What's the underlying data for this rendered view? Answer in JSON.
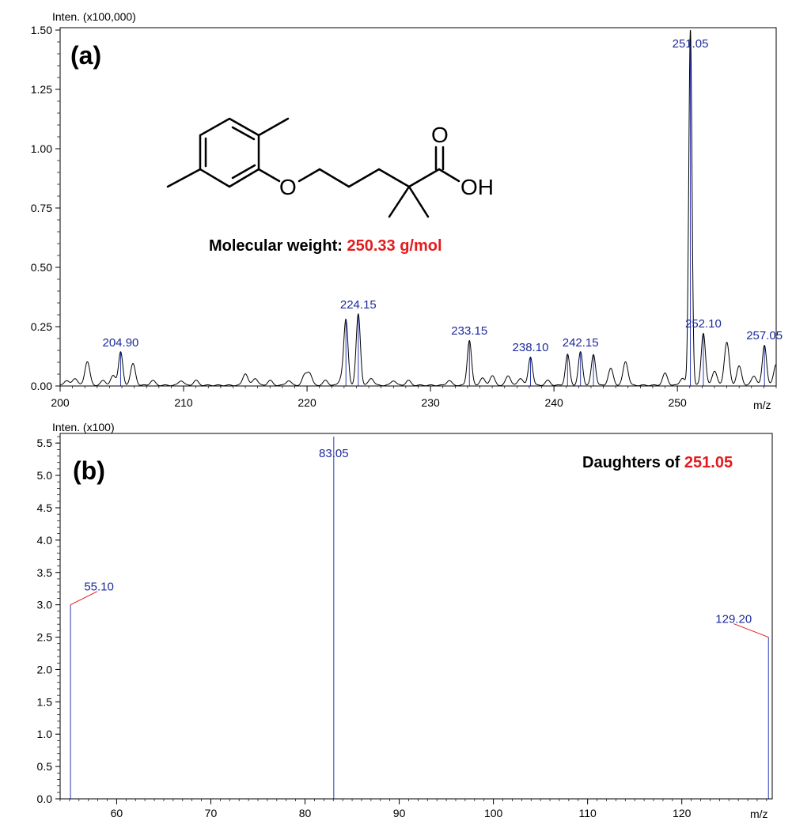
{
  "colors": {
    "peak_line": "#2a3cb8",
    "peak_label": "#1c2a9c",
    "trace": "#000000",
    "highlight": "#e41a1c",
    "leader": "#e41a1c"
  },
  "chart_data": [
    {
      "panel": "(a)",
      "type": "line",
      "ylabel": "Inten. (x100,000)",
      "xlabel": "m/z",
      "xlim": [
        200,
        258
      ],
      "ylim": [
        0,
        1.5
      ],
      "x_ticks": [
        "200",
        "210",
        "220",
        "230",
        "240",
        "250"
      ],
      "y_ticks": [
        "0.00",
        "0.25",
        "0.50",
        "0.75",
        "1.00",
        "1.25",
        "1.50"
      ],
      "grid": false,
      "peaks": [
        {
          "mz": 204.9,
          "intensity": 0.14,
          "label": "204.90"
        },
        {
          "mz": 223.15,
          "intensity": 0.27,
          "label": ""
        },
        {
          "mz": 224.15,
          "intensity": 0.3,
          "label": "224.15"
        },
        {
          "mz": 233.15,
          "intensity": 0.19,
          "label": "233.15"
        },
        {
          "mz": 238.1,
          "intensity": 0.12,
          "label": "238.10"
        },
        {
          "mz": 241.1,
          "intensity": 0.13,
          "label": ""
        },
        {
          "mz": 242.15,
          "intensity": 0.14,
          "label": "242.15"
        },
        {
          "mz": 243.2,
          "intensity": 0.13,
          "label": ""
        },
        {
          "mz": 251.05,
          "intensity": 1.5,
          "label": "251.05"
        },
        {
          "mz": 252.1,
          "intensity": 0.22,
          "label": "252.10"
        },
        {
          "mz": 257.05,
          "intensity": 0.17,
          "label": "257.05"
        }
      ],
      "minor_peaks": [
        {
          "mz": 200.5,
          "intensity": 0.02
        },
        {
          "mz": 201.2,
          "intensity": 0.03
        },
        {
          "mz": 202.2,
          "intensity": 0.1
        },
        {
          "mz": 203.5,
          "intensity": 0.02
        },
        {
          "mz": 204.3,
          "intensity": 0.04
        },
        {
          "mz": 205.9,
          "intensity": 0.09
        },
        {
          "mz": 207.5,
          "intensity": 0.02
        },
        {
          "mz": 209.8,
          "intensity": 0.02
        },
        {
          "mz": 211.0,
          "intensity": 0.02
        },
        {
          "mz": 215.0,
          "intensity": 0.05
        },
        {
          "mz": 215.8,
          "intensity": 0.03
        },
        {
          "mz": 217.0,
          "intensity": 0.02
        },
        {
          "mz": 218.5,
          "intensity": 0.02
        },
        {
          "mz": 219.8,
          "intensity": 0.04
        },
        {
          "mz": 220.2,
          "intensity": 0.05
        },
        {
          "mz": 221.5,
          "intensity": 0.02
        },
        {
          "mz": 222.8,
          "intensity": 0.03
        },
        {
          "mz": 225.2,
          "intensity": 0.03
        },
        {
          "mz": 227.0,
          "intensity": 0.02
        },
        {
          "mz": 228.2,
          "intensity": 0.02
        },
        {
          "mz": 231.5,
          "intensity": 0.02
        },
        {
          "mz": 234.2,
          "intensity": 0.03
        },
        {
          "mz": 235.0,
          "intensity": 0.04
        },
        {
          "mz": 236.3,
          "intensity": 0.04
        },
        {
          "mz": 237.3,
          "intensity": 0.03
        },
        {
          "mz": 239.5,
          "intensity": 0.02
        },
        {
          "mz": 244.6,
          "intensity": 0.07
        },
        {
          "mz": 245.8,
          "intensity": 0.1
        },
        {
          "mz": 249.0,
          "intensity": 0.05
        },
        {
          "mz": 250.4,
          "intensity": 0.03
        },
        {
          "mz": 253.0,
          "intensity": 0.06
        },
        {
          "mz": 254.0,
          "intensity": 0.18
        },
        {
          "mz": 255.0,
          "intensity": 0.08
        },
        {
          "mz": 256.2,
          "intensity": 0.04
        },
        {
          "mz": 258.0,
          "intensity": 0.09
        },
        {
          "mz": 258.6,
          "intensity": 0.05
        }
      ]
    },
    {
      "panel": "(b)",
      "type": "bar",
      "ylabel": "Inten. (x100)",
      "xlabel": "m/z",
      "xlim": [
        54,
        129.6
      ],
      "ylim": [
        0,
        5.6
      ],
      "x_ticks": [
        "60",
        "70",
        "80",
        "90",
        "100",
        "110",
        "120"
      ],
      "y_ticks": [
        "0.0",
        "0.5",
        "1.0",
        "1.5",
        "2.0",
        "2.5",
        "3.0",
        "3.5",
        "4.0",
        "4.5",
        "5.0",
        "5.5"
      ],
      "grid": false,
      "peaks": [
        {
          "mz": 55.1,
          "intensity": 3.0,
          "label": "55.10"
        },
        {
          "mz": 83.05,
          "intensity": 5.6,
          "label": "83.05"
        },
        {
          "mz": 129.2,
          "intensity": 2.5,
          "label": "129.20"
        }
      ]
    }
  ],
  "panel_a": {
    "label": "(a)",
    "mw_prefix": "Molecular weight:",
    "mw_value": "250.33 g/mol",
    "atom_o": "O",
    "atom_oh": "OH",
    "atom_o2": "O"
  },
  "panel_b": {
    "label": "(b)",
    "daughters_prefix": "Daughters of",
    "daughters_value": "251.05"
  }
}
